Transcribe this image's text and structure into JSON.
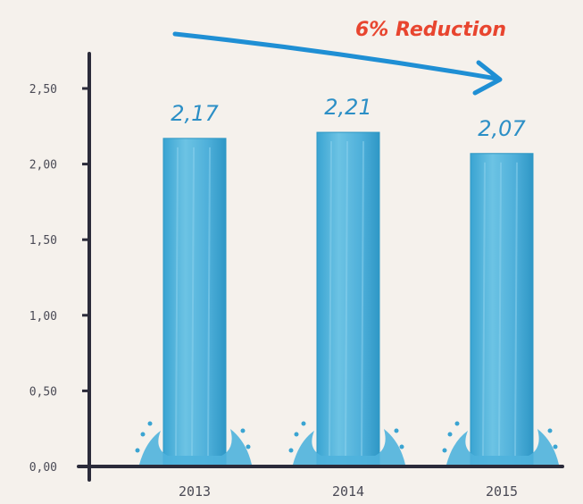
{
  "chart_data": {
    "type": "bar",
    "categories": [
      "2013",
      "2014",
      "2015"
    ],
    "values": [
      2.17,
      2.21,
      2.07
    ],
    "value_labels": [
      "2,17",
      "2,21",
      "2,07"
    ],
    "y_ticks": [
      "0,00",
      "0,50",
      "1,00",
      "1,50",
      "2,00",
      "2,50"
    ],
    "ylim": [
      0,
      2.5
    ],
    "annotation": "6% Reduction",
    "title": "",
    "xlabel": "",
    "ylabel": "",
    "grid": false,
    "colors": {
      "bar": "#58b6da",
      "bar_dark": "#2d97c4",
      "axis": "#2b2b3a",
      "arrow": "#1f8fd4",
      "annotation": "#e8452f",
      "value_label": "#2c8fc6"
    }
  }
}
